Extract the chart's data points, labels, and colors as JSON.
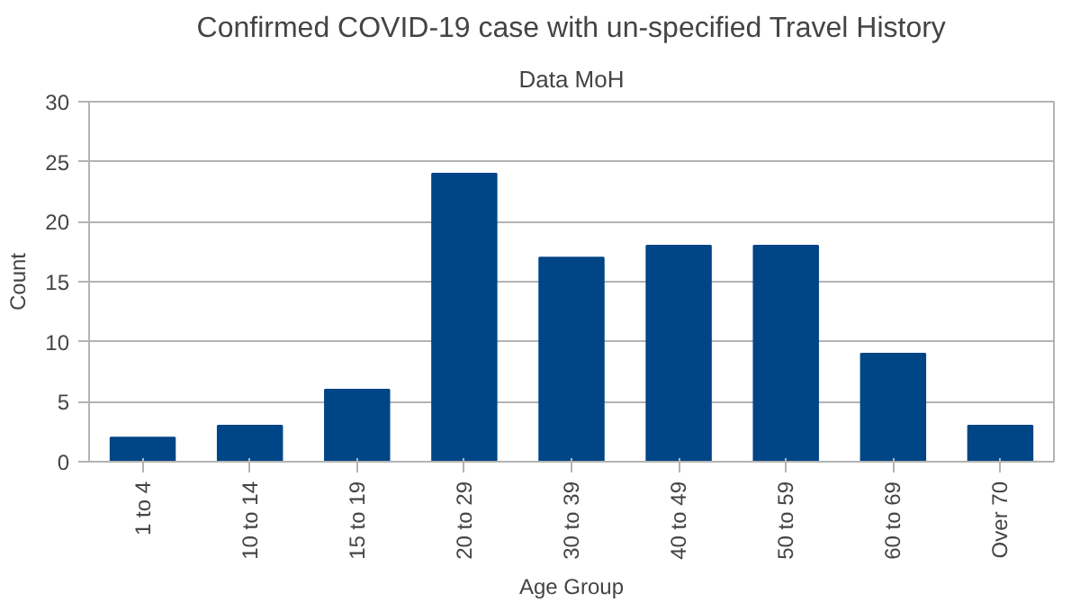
{
  "chart_data": {
    "type": "bar",
    "title": "Confirmed COVID-19 case with un-specified Travel History",
    "subtitle": "Data MoH",
    "xlabel": "Age Group",
    "ylabel": "Count",
    "categories": [
      "1 to 4",
      "10 to 14",
      "15 to 19",
      "20 to 29",
      "30 to 39",
      "40 to 49",
      "50 to 59",
      "60 to 69",
      "Over 70"
    ],
    "values": [
      2,
      3,
      6,
      24,
      17,
      18,
      18,
      9,
      3
    ],
    "color": "#004586",
    "ylim": [
      0,
      30
    ],
    "yticks": [
      0,
      5,
      10,
      15,
      20,
      25,
      30
    ],
    "grid": "y"
  }
}
